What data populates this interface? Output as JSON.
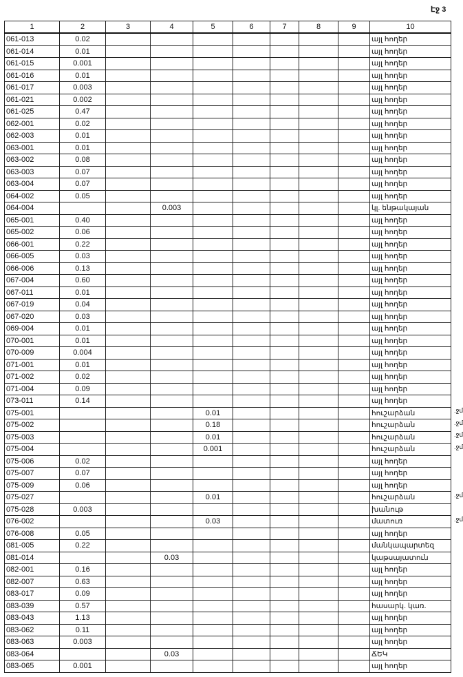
{
  "page_label": "Էջ 3",
  "columns": [
    "1",
    "2",
    "3",
    "4",
    "5",
    "6",
    "7",
    "8",
    "9",
    "10"
  ],
  "rows": [
    {
      "c": [
        "061-013",
        "0.02",
        "",
        "",
        "",
        "",
        "",
        "",
        "",
        "այլ հողեր"
      ],
      "note": ""
    },
    {
      "c": [
        "061-014",
        "0.01",
        "",
        "",
        "",
        "",
        "",
        "",
        "",
        "այլ հողեր"
      ],
      "note": ""
    },
    {
      "c": [
        "061-015",
        "0.001",
        "",
        "",
        "",
        "",
        "",
        "",
        "",
        "այլ հողեր"
      ],
      "note": ""
    },
    {
      "c": [
        "061-016",
        "0.01",
        "",
        "",
        "",
        "",
        "",
        "",
        "",
        "այլ հողեր"
      ],
      "note": ""
    },
    {
      "c": [
        "061-017",
        "0.003",
        "",
        "",
        "",
        "",
        "",
        "",
        "",
        "այլ հողեր"
      ],
      "note": ""
    },
    {
      "c": [
        "061-021",
        "0.002",
        "",
        "",
        "",
        "",
        "",
        "",
        "",
        "այլ հողեր"
      ],
      "note": ""
    },
    {
      "c": [
        "061-025",
        "0.47",
        "",
        "",
        "",
        "",
        "",
        "",
        "",
        "այլ հողեր"
      ],
      "note": ""
    },
    {
      "c": [
        "062-001",
        "0.02",
        "",
        "",
        "",
        "",
        "",
        "",
        "",
        "այլ հողեր"
      ],
      "note": ""
    },
    {
      "c": [
        "062-003",
        "0.01",
        "",
        "",
        "",
        "",
        "",
        "",
        "",
        "այլ հողեր"
      ],
      "note": ""
    },
    {
      "c": [
        "063-001",
        "0.01",
        "",
        "",
        "",
        "",
        "",
        "",
        "",
        "այլ հողեր"
      ],
      "note": ""
    },
    {
      "c": [
        "063-002",
        "0.08",
        "",
        "",
        "",
        "",
        "",
        "",
        "",
        "այլ հողեր"
      ],
      "note": ""
    },
    {
      "c": [
        "063-003",
        "0.07",
        "",
        "",
        "",
        "",
        "",
        "",
        "",
        "այլ հողեր"
      ],
      "note": ""
    },
    {
      "c": [
        "063-004",
        "0.07",
        "",
        "",
        "",
        "",
        "",
        "",
        "",
        "այլ հողեր"
      ],
      "note": ""
    },
    {
      "c": [
        "064-002",
        "0.05",
        "",
        "",
        "",
        "",
        "",
        "",
        "",
        "այլ հողեր"
      ],
      "note": ""
    },
    {
      "c": [
        "064-004",
        "",
        "",
        "0.003",
        "",
        "",
        "",
        "",
        "",
        "կլ. ենթակայան"
      ],
      "note": ""
    },
    {
      "c": [
        "065-001",
        "0.40",
        "",
        "",
        "",
        "",
        "",
        "",
        "",
        "այլ հողեր"
      ],
      "note": ""
    },
    {
      "c": [
        "065-002",
        "0.06",
        "",
        "",
        "",
        "",
        "",
        "",
        "",
        "այլ հողեր"
      ],
      "note": ""
    },
    {
      "c": [
        "066-001",
        "0.22",
        "",
        "",
        "",
        "",
        "",
        "",
        "",
        "այլ հողեր"
      ],
      "note": ""
    },
    {
      "c": [
        "066-005",
        "0.03",
        "",
        "",
        "",
        "",
        "",
        "",
        "",
        "այլ հողեր"
      ],
      "note": ""
    },
    {
      "c": [
        "066-006",
        "0.13",
        "",
        "",
        "",
        "",
        "",
        "",
        "",
        "այլ հողեր"
      ],
      "note": ""
    },
    {
      "c": [
        "067-004",
        "0.60",
        "",
        "",
        "",
        "",
        "",
        "",
        "",
        "այլ հողեր"
      ],
      "note": ""
    },
    {
      "c": [
        "067-011",
        "0.01",
        "",
        "",
        "",
        "",
        "",
        "",
        "",
        "այլ հողեր"
      ],
      "note": ""
    },
    {
      "c": [
        "067-019",
        "0.04",
        "",
        "",
        "",
        "",
        "",
        "",
        "",
        "այլ հողեր"
      ],
      "note": ""
    },
    {
      "c": [
        "067-020",
        "0.03",
        "",
        "",
        "",
        "",
        "",
        "",
        "",
        "այլ հողեր"
      ],
      "note": ""
    },
    {
      "c": [
        "069-004",
        "0.01",
        "",
        "",
        "",
        "",
        "",
        "",
        "",
        "այլ հողեր"
      ],
      "note": ""
    },
    {
      "c": [
        "070-001",
        "0.01",
        "",
        "",
        "",
        "",
        "",
        "",
        "",
        "այլ հողեր"
      ],
      "note": ""
    },
    {
      "c": [
        "070-009",
        "0.004",
        "",
        "",
        "",
        "",
        "",
        "",
        "",
        "այլ հողեր"
      ],
      "note": ""
    },
    {
      "c": [
        "071-001",
        "0.01",
        "",
        "",
        "",
        "",
        "",
        "",
        "",
        "այլ հողեր"
      ],
      "note": ""
    },
    {
      "c": [
        "071-002",
        "0.02",
        "",
        "",
        "",
        "",
        "",
        "",
        "",
        "այլ հողեր"
      ],
      "note": ""
    },
    {
      "c": [
        "071-004",
        "0.09",
        "",
        "",
        "",
        "",
        "",
        "",
        "",
        "այլ հողեր"
      ],
      "note": ""
    },
    {
      "c": [
        "073-011",
        "0.14",
        "",
        "",
        "",
        "",
        "",
        "",
        "",
        "այլ հողեր"
      ],
      "note": ""
    },
    {
      "c": [
        "075-001",
        "",
        "",
        "",
        "0.01",
        "",
        "",
        "",
        "",
        "հուշարձան"
      ],
      "note": ".ջմ"
    },
    {
      "c": [
        "075-002",
        "",
        "",
        "",
        "0.18",
        "",
        "",
        "",
        "",
        "հուշարձան"
      ],
      "note": ".ջմ"
    },
    {
      "c": [
        "075-003",
        "",
        "",
        "",
        "0.01",
        "",
        "",
        "",
        "",
        "հուշարձան"
      ],
      "note": ".ջմ"
    },
    {
      "c": [
        "075-004",
        "",
        "",
        "",
        "0.001",
        "",
        "",
        "",
        "",
        "հուշարձան"
      ],
      "note": ".ջմ"
    },
    {
      "c": [
        "075-006",
        "0.02",
        "",
        "",
        "",
        "",
        "",
        "",
        "",
        "այլ հողեր"
      ],
      "note": ""
    },
    {
      "c": [
        "075-007",
        "0.07",
        "",
        "",
        "",
        "",
        "",
        "",
        "",
        "այլ հողեր"
      ],
      "note": ""
    },
    {
      "c": [
        "075-009",
        "0.06",
        "",
        "",
        "",
        "",
        "",
        "",
        "",
        "այլ հողեր"
      ],
      "note": ""
    },
    {
      "c": [
        "075-027",
        "",
        "",
        "",
        "0.01",
        "",
        "",
        "",
        "",
        "հուշարձան"
      ],
      "note": ".ջմ"
    },
    {
      "c": [
        "075-028",
        "0.003",
        "",
        "",
        "",
        "",
        "",
        "",
        "",
        "խանութ"
      ],
      "note": ""
    },
    {
      "c": [
        "076-002",
        "",
        "",
        "",
        "0.03",
        "",
        "",
        "",
        "",
        "մատուռ"
      ],
      "note": ".ջմ"
    },
    {
      "c": [
        "076-008",
        "0.05",
        "",
        "",
        "",
        "",
        "",
        "",
        "",
        "այլ հողեր"
      ],
      "note": ""
    },
    {
      "c": [
        "081-005",
        "0.22",
        "",
        "",
        "",
        "",
        "",
        "",
        "",
        "մանկապարտեզ"
      ],
      "note": ""
    },
    {
      "c": [
        "081-014",
        "",
        "",
        "0.03",
        "",
        "",
        "",
        "",
        "",
        "կաթսայատուն"
      ],
      "note": ""
    },
    {
      "c": [
        "082-001",
        "0.16",
        "",
        "",
        "",
        "",
        "",
        "",
        "",
        "այլ հողեր"
      ],
      "note": ""
    },
    {
      "c": [
        "082-007",
        "0.63",
        "",
        "",
        "",
        "",
        "",
        "",
        "",
        "այլ հողեր"
      ],
      "note": ""
    },
    {
      "c": [
        "083-017",
        "0.09",
        "",
        "",
        "",
        "",
        "",
        "",
        "",
        "այլ հողեր"
      ],
      "note": ""
    },
    {
      "c": [
        "083-039",
        "0.57",
        "",
        "",
        "",
        "",
        "",
        "",
        "",
        "հասարկ. կառ."
      ],
      "note": ""
    },
    {
      "c": [
        "083-043",
        "1.13",
        "",
        "",
        "",
        "",
        "",
        "",
        "",
        "այլ հողեր"
      ],
      "note": ""
    },
    {
      "c": [
        "083-062",
        "0.11",
        "",
        "",
        "",
        "",
        "",
        "",
        "",
        "այլ հողեր"
      ],
      "note": ""
    },
    {
      "c": [
        "083-063",
        "0.003",
        "",
        "",
        "",
        "",
        "",
        "",
        "",
        "այլ հողեր"
      ],
      "note": ""
    },
    {
      "c": [
        "083-064",
        "",
        "",
        "0.03",
        "",
        "",
        "",
        "",
        "",
        "ՃԵԿ"
      ],
      "note": ""
    },
    {
      "c": [
        "083-065",
        "0.001",
        "",
        "",
        "",
        "",
        "",
        "",
        "",
        "այլ հողեր"
      ],
      "note": ""
    }
  ]
}
